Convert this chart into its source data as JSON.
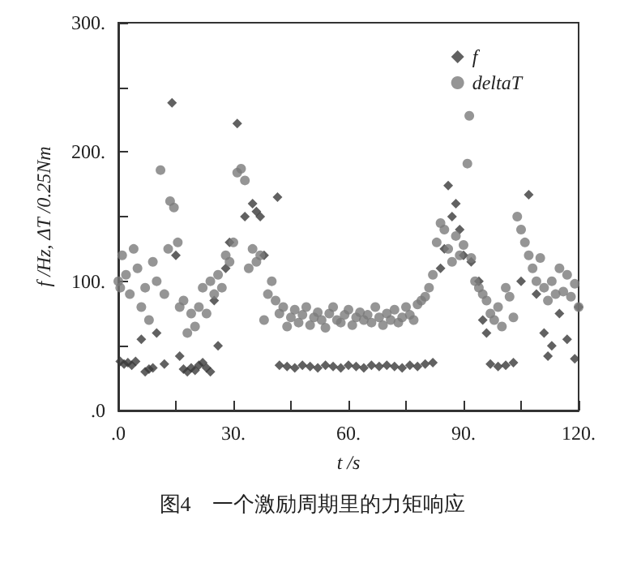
{
  "chart_data": {
    "type": "scatter",
    "xlabel": "t /s",
    "ylabel": "f /Hz, ΔT /0.25Nm",
    "annotations": [
      "图4　一个激励周期里的力矩响应"
    ],
    "xlim": [
      0,
      120
    ],
    "ylim": [
      0,
      300
    ],
    "xticks": [
      {
        "value": 0,
        "label": ".0"
      },
      {
        "value": 15,
        "label": null
      },
      {
        "value": 30,
        "label": "30."
      },
      {
        "value": 45,
        "label": null
      },
      {
        "value": 60,
        "label": "60."
      },
      {
        "value": 75,
        "label": null
      },
      {
        "value": 90,
        "label": "90."
      },
      {
        "value": 105,
        "label": null
      },
      {
        "value": 120,
        "label": "120."
      }
    ],
    "yticks": [
      {
        "value": 0,
        "label": ".0"
      },
      {
        "value": 50,
        "label": null
      },
      {
        "value": 100,
        "label": "100."
      },
      {
        "value": 150,
        "label": null
      },
      {
        "value": 200,
        "label": "200."
      },
      {
        "value": 250,
        "label": null
      },
      {
        "value": 300,
        "label": "300."
      }
    ],
    "grid": false,
    "legend": "top right",
    "series": [
      {
        "name": "f",
        "color": "#3a3a3a",
        "marker": "diamond",
        "x": [
          0.5,
          1.5,
          2.5,
          3.5,
          4.5,
          7,
          8,
          9,
          12,
          16,
          17,
          18,
          19,
          20,
          21,
          22,
          23,
          24,
          26,
          6,
          10,
          14,
          15,
          25,
          28,
          29,
          31,
          33,
          35,
          36,
          37,
          38,
          41.5,
          42,
          44,
          46,
          48,
          50,
          52,
          54,
          56,
          58,
          60,
          62,
          64,
          66,
          68,
          70,
          72,
          74,
          76,
          78,
          80,
          82,
          84,
          85,
          86,
          87,
          88,
          89,
          90,
          92,
          94,
          95,
          96,
          97,
          99,
          101,
          103,
          105,
          107,
          109,
          111,
          112,
          113,
          115,
          117,
          119,
          120
        ],
        "values": [
          38,
          36,
          37,
          35,
          38,
          30,
          32,
          33,
          36,
          42,
          32,
          30,
          33,
          31,
          35,
          37,
          33,
          30,
          50,
          55,
          60,
          238,
          120,
          85,
          110,
          130,
          222,
          150,
          160,
          154,
          150,
          120,
          165,
          35,
          34,
          33,
          35,
          34,
          33,
          35,
          34,
          33,
          35,
          34,
          33,
          35,
          34,
          35,
          34,
          33,
          35,
          34,
          36,
          37,
          110,
          125,
          174,
          150,
          160,
          140,
          120,
          115,
          100,
          70,
          60,
          36,
          34,
          35,
          37,
          100,
          167,
          90,
          60,
          42,
          50,
          75,
          55,
          40,
          80
        ]
      },
      {
        "name": "deltaT",
        "color": "#7a7a7a",
        "marker": "circle",
        "x": [
          0,
          0.5,
          1,
          2,
          3,
          4,
          5,
          6,
          7,
          8,
          9,
          10,
          11,
          12,
          13,
          13.5,
          14.5,
          15.5,
          16,
          17,
          18,
          19,
          20,
          21,
          22,
          23,
          24,
          25,
          26,
          27,
          28,
          29,
          30,
          31,
          32,
          33,
          34,
          35,
          36,
          37,
          38,
          39,
          40,
          41,
          42,
          43,
          44,
          45,
          46,
          47,
          48,
          49,
          50,
          51,
          52,
          53,
          54,
          55,
          56,
          57,
          58,
          59,
          60,
          61,
          62,
          63,
          64,
          65,
          66,
          67,
          68,
          69,
          70,
          71,
          72,
          73,
          74,
          75,
          76,
          77,
          78,
          79,
          80,
          81,
          82,
          83,
          84,
          85,
          86,
          87,
          88,
          89,
          90,
          91,
          91.5,
          92,
          93,
          94,
          95,
          96,
          97,
          98,
          99,
          100,
          101,
          102,
          103,
          104,
          105,
          106,
          107,
          108,
          109,
          110,
          111,
          112,
          113,
          114,
          115,
          116,
          117,
          118,
          119,
          120
        ],
        "values": [
          100,
          95,
          120,
          105,
          90,
          125,
          110,
          80,
          95,
          70,
          115,
          100,
          186,
          90,
          125,
          162,
          157,
          130,
          80,
          85,
          60,
          75,
          65,
          80,
          95,
          75,
          100,
          90,
          105,
          95,
          120,
          115,
          130,
          184,
          187,
          178,
          110,
          125,
          115,
          120,
          70,
          90,
          100,
          85,
          75,
          80,
          65,
          72,
          78,
          68,
          74,
          80,
          66,
          72,
          76,
          70,
          64,
          75,
          80,
          70,
          68,
          74,
          78,
          66,
          72,
          76,
          70,
          74,
          68,
          80,
          72,
          66,
          75,
          70,
          78,
          68,
          72,
          80,
          74,
          70,
          82,
          85,
          88,
          95,
          105,
          130,
          145,
          140,
          125,
          115,
          135,
          120,
          128,
          191,
          228,
          118,
          100,
          95,
          90,
          85,
          75,
          70,
          80,
          65,
          95,
          88,
          72,
          150,
          140,
          130,
          120,
          110,
          100,
          118,
          95,
          85,
          100,
          90,
          110,
          92,
          105,
          88,
          98,
          80
        ]
      }
    ]
  }
}
